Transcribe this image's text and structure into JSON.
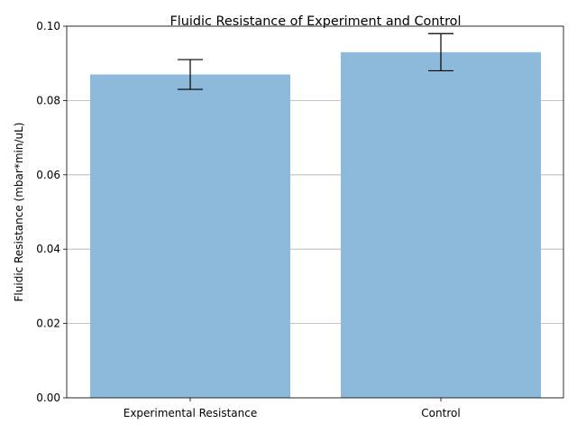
{
  "chart_data": {
    "type": "bar",
    "title": "Fluidic Resistance of Experiment and Control",
    "xlabel": "",
    "ylabel": "Fluidic Resistance (mbar*min/uL)",
    "categories": [
      "Experimental Resistance",
      "Control"
    ],
    "values": [
      0.087,
      0.093
    ],
    "errors": [
      0.004,
      0.005
    ],
    "ylim": [
      0,
      0.1
    ],
    "yticks": [
      "0.00",
      "0.02",
      "0.04",
      "0.06",
      "0.08",
      "0.10"
    ],
    "grid": "y-axis on",
    "bar_color": "#8db9da",
    "error_bar_color": "#000000"
  }
}
